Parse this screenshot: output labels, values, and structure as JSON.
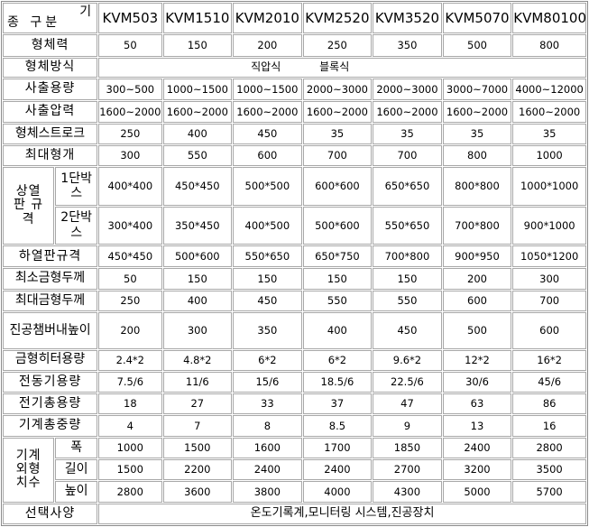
{
  "header": {
    "corner_top": "기",
    "corner_bottom": "종 구분",
    "models": [
      "KVM503",
      "KVM1510",
      "KVM2010",
      "KVM2520",
      "KVM3520",
      "KVM5070",
      "KVM80100"
    ]
  },
  "rows": {
    "clamp_force": {
      "label": "형체력",
      "values": [
        "50",
        "150",
        "200",
        "250",
        "350",
        "500",
        "800"
      ]
    },
    "clamp_method": {
      "label": "형체방식",
      "direct": "직압식",
      "block": "블록식"
    },
    "shot_volume": {
      "label": "사출용량",
      "values": [
        "300~500",
        "1000~1500",
        "1000~1500",
        "2000~3000",
        "2000~3000",
        "3000~7000",
        "4000~12000"
      ]
    },
    "shot_pressure": {
      "label": "사출압력",
      "values": [
        "1600~2000",
        "1600~2000",
        "1600~2000",
        "1600~2000",
        "1600~2000",
        "1600~2000",
        "1600~2000"
      ]
    },
    "clamp_stroke": {
      "label": "형체스트로크",
      "values": [
        "250",
        "400",
        "450",
        "35",
        "35",
        "35",
        "35"
      ]
    },
    "max_open": {
      "label": "최대형개",
      "values": [
        "300",
        "550",
        "600",
        "700",
        "700",
        "800",
        "1000"
      ]
    },
    "upper_platen": {
      "label_lines": [
        "상열",
        "판 규",
        "격"
      ],
      "stage1": {
        "label": "1단박스",
        "values": [
          "400*400",
          "450*450",
          "500*500",
          "600*600",
          "650*650",
          "800*800",
          "1000*1000"
        ]
      },
      "stage2": {
        "label": "2단박스",
        "values": [
          "300*400",
          "350*450",
          "400*500",
          "500*600",
          "550*650",
          "700*800",
          "900*1000"
        ]
      }
    },
    "lower_platen": {
      "label": "하열판규격",
      "values": [
        "450*450",
        "500*600",
        "550*650",
        "650*750",
        "700*800",
        "900*950",
        "1050*1200"
      ]
    },
    "min_mold": {
      "label": "최소금형두께",
      "values": [
        "50",
        "150",
        "150",
        "150",
        "150",
        "200",
        "300"
      ]
    },
    "max_mold": {
      "label": "최대금형두께",
      "values": [
        "250",
        "400",
        "450",
        "550",
        "550",
        "600",
        "700"
      ]
    },
    "vacuum_height": {
      "label": "진공챔버내높이",
      "values": [
        "200",
        "300",
        "350",
        "400",
        "450",
        "500",
        "600"
      ]
    },
    "heater_capacity": {
      "label": "금형히터용량",
      "values": [
        "2.4*2",
        "4.8*2",
        "6*2",
        "6*2",
        "9.6*2",
        "12*2",
        "16*2"
      ]
    },
    "motor_capacity": {
      "label": "전동기용량",
      "values": [
        "7.5/6",
        "11/6",
        "15/6",
        "18.5/6",
        "22.5/6",
        "30/6",
        "45/6"
      ]
    },
    "total_power": {
      "label": "전기총용량",
      "values": [
        "18",
        "27",
        "33",
        "37",
        "47",
        "63",
        "86"
      ]
    },
    "total_weight": {
      "label": "기계총중량",
      "values": [
        "4",
        "7",
        "8",
        "8.5",
        "9",
        "13",
        "16"
      ]
    },
    "dimensions": {
      "label_lines": [
        "기계",
        "외형",
        "치수"
      ],
      "width": {
        "label": "폭",
        "values": [
          "1000",
          "1500",
          "1600",
          "1700",
          "1850",
          "2400",
          "2800"
        ]
      },
      "length": {
        "label": "길이",
        "values": [
          "1500",
          "2200",
          "2400",
          "2400",
          "2700",
          "3200",
          "3500"
        ]
      },
      "height": {
        "label": "높이",
        "values": [
          "2800",
          "3600",
          "3800",
          "4000",
          "4300",
          "5000",
          "5700"
        ]
      }
    },
    "options": {
      "label": "선택사양",
      "value": "온도기록계,모니터링 시스템,진공장치"
    }
  }
}
